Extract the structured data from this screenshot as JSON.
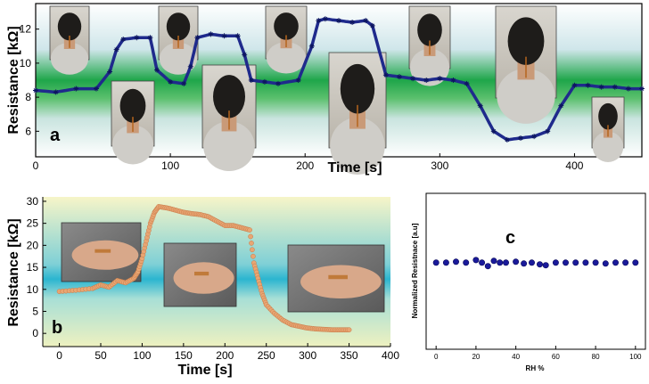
{
  "chart_data": [
    {
      "panel": "a",
      "type": "line",
      "xlabel": "Time [s]",
      "ylabel": "Resistance [kΩ]",
      "xlim": [
        0,
        450
      ],
      "ylim": [
        4.5,
        13.5
      ],
      "xticks": [
        0,
        100,
        200,
        300,
        400
      ],
      "yticks": [
        6,
        8,
        10,
        12
      ],
      "marker": "star",
      "color": "#1f2a8c",
      "x": [
        0,
        15,
        30,
        45,
        55,
        60,
        65,
        75,
        85,
        90,
        100,
        110,
        115,
        120,
        130,
        140,
        150,
        155,
        160,
        170,
        180,
        195,
        205,
        210,
        215,
        225,
        235,
        245,
        250,
        260,
        270,
        280,
        290,
        300,
        310,
        320,
        330,
        340,
        350,
        360,
        370,
        380,
        390,
        400,
        410,
        420,
        430,
        440,
        450
      ],
      "y": [
        8.4,
        8.3,
        8.5,
        8.5,
        9.5,
        10.8,
        11.4,
        11.5,
        11.5,
        9.6,
        8.9,
        8.8,
        9.8,
        11.5,
        11.7,
        11.6,
        11.6,
        10.5,
        9.0,
        8.9,
        8.8,
        9.0,
        11.0,
        12.5,
        12.6,
        12.5,
        12.4,
        12.5,
        12.2,
        9.3,
        9.2,
        9.1,
        9.0,
        9.1,
        9.0,
        8.8,
        7.5,
        6.0,
        5.5,
        5.6,
        5.7,
        6.0,
        7.5,
        8.7,
        8.7,
        8.6,
        8.6,
        8.5,
        8.5
      ],
      "photos": [
        "back-of-neck",
        "neck-turned-right",
        "back-of-neck",
        "neck-turned-left",
        "back-of-neck",
        "neck-bent-forward",
        "back-of-neck",
        "neck-tilted-back",
        "back-of-neck"
      ]
    },
    {
      "panel": "b",
      "type": "line",
      "xlabel": "Time [s]",
      "ylabel": "Resistance [kΩ]",
      "xlim": [
        -20,
        400
      ],
      "ylim": [
        -3,
        31
      ],
      "xticks": [
        0,
        50,
        100,
        150,
        200,
        250,
        300,
        350,
        400
      ],
      "yticks": [
        0,
        5,
        10,
        15,
        20,
        25,
        30
      ],
      "marker": "circle",
      "color": "#e8a673",
      "x": [
        0,
        20,
        40,
        50,
        60,
        70,
        80,
        90,
        95,
        100,
        105,
        110,
        115,
        120,
        130,
        140,
        150,
        160,
        170,
        180,
        190,
        200,
        210,
        220,
        230,
        235,
        240,
        245,
        250,
        260,
        270,
        280,
        290,
        300,
        310,
        320,
        330,
        340,
        350
      ],
      "y": [
        9.5,
        9.8,
        10.2,
        11.0,
        10.5,
        12.0,
        11.5,
        12.5,
        14.0,
        17.0,
        21.0,
        25.0,
        27.5,
        28.8,
        28.5,
        28.0,
        27.5,
        27.2,
        27.0,
        26.5,
        25.5,
        24.5,
        24.5,
        24.0,
        23.5,
        16.0,
        12.5,
        9.0,
        6.5,
        4.5,
        3.0,
        2.0,
        1.6,
        1.2,
        1.0,
        0.9,
        0.8,
        0.8,
        0.8
      ],
      "photos": [
        "wrist-sensor",
        "knee-sensor",
        "wrist-fist-sensor"
      ]
    },
    {
      "panel": "c",
      "type": "scatter",
      "xlabel": "RH %",
      "ylabel": "Normalized Resistnace [a.u]",
      "xlim": [
        -5,
        105
      ],
      "ylim": [
        0,
        1.8
      ],
      "xticks": [
        0,
        20,
        40,
        60,
        80,
        100
      ],
      "color": "#1a1a9a",
      "x": [
        0,
        5,
        10,
        15,
        20,
        23,
        26,
        29,
        32,
        35,
        40,
        44,
        48,
        52,
        55,
        60,
        65,
        70,
        75,
        80,
        85,
        90,
        95,
        100
      ],
      "y": [
        1.0,
        1.0,
        1.01,
        1.0,
        1.03,
        1.0,
        0.96,
        1.02,
        1.0,
        1.0,
        1.01,
        0.99,
        1.0,
        0.98,
        0.97,
        1.0,
        1.0,
        1.0,
        1.0,
        1.0,
        0.99,
        1.0,
        1.0,
        1.0
      ]
    }
  ]
}
